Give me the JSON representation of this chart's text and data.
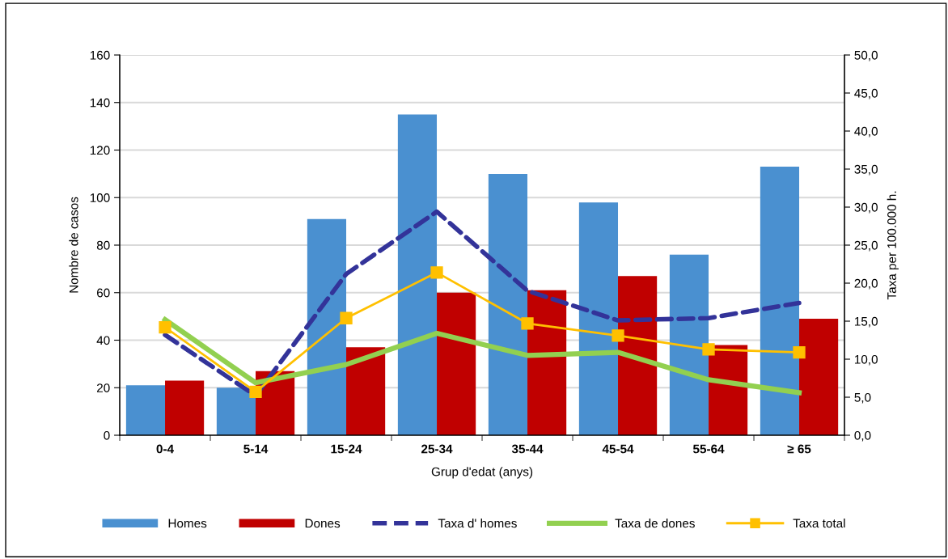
{
  "chart_data": {
    "type": "bar",
    "xlabel": "Grup d'edat (anys)",
    "ylabel": "Nombre de casos",
    "y2label": "Taxa per 100.000 h.",
    "categories": [
      "0-4",
      "5-14",
      "15-24",
      "25-34",
      "35-44",
      "45-54",
      "55-64",
      "≥ 65"
    ],
    "series": [
      {
        "name": "Homes",
        "color": "#4a90d0",
        "values": [
          21,
          20,
          91,
          135,
          110,
          98,
          76,
          113
        ]
      },
      {
        "name": "Dones",
        "color": "#c00000",
        "values": [
          23,
          27,
          37,
          60,
          61,
          67,
          38,
          49
        ]
      },
      {
        "name": "Taxa d' homes",
        "type": "line",
        "axis": "y2",
        "color": "#333399",
        "line_style": "dashed",
        "marker": "none",
        "values": [
          13.2,
          5.2,
          21.2,
          29.4,
          19.0,
          15.1,
          15.4,
          17.4
        ]
      },
      {
        "name": "Taxa de dones",
        "type": "line",
        "axis": "y2",
        "color": "#92d050",
        "line_style": "solid",
        "marker": "none",
        "values": [
          15.2,
          6.9,
          9.3,
          13.4,
          10.5,
          10.9,
          7.3,
          5.6
        ]
      },
      {
        "name": "Taxa total",
        "type": "line",
        "axis": "y2",
        "color": "#ffc000",
        "line_style": "solid",
        "marker": "square",
        "values": [
          14.2,
          5.7,
          15.4,
          21.4,
          14.7,
          13.1,
          11.3,
          10.9
        ]
      }
    ],
    "ylim": [
      0,
      160
    ],
    "yticks": [
      0,
      20,
      40,
      60,
      80,
      100,
      120,
      140,
      160
    ],
    "y2lim": [
      0,
      50
    ],
    "y2ticks": [
      {
        "value": 0,
        "label": "0,0"
      },
      {
        "value": 5,
        "label": "5,0"
      },
      {
        "value": 10,
        "label": "10,0"
      },
      {
        "value": 15,
        "label": "15,0"
      },
      {
        "value": 20,
        "label": "20,0"
      },
      {
        "value": 25,
        "label": "25,0"
      },
      {
        "value": 30,
        "label": "30,0"
      },
      {
        "value": 35,
        "label": "35,0"
      },
      {
        "value": 40,
        "label": "40,0"
      },
      {
        "value": 45,
        "label": "45,0"
      },
      {
        "value": 50,
        "label": "50,0"
      }
    ],
    "grid": "y",
    "legend": "bottom"
  }
}
